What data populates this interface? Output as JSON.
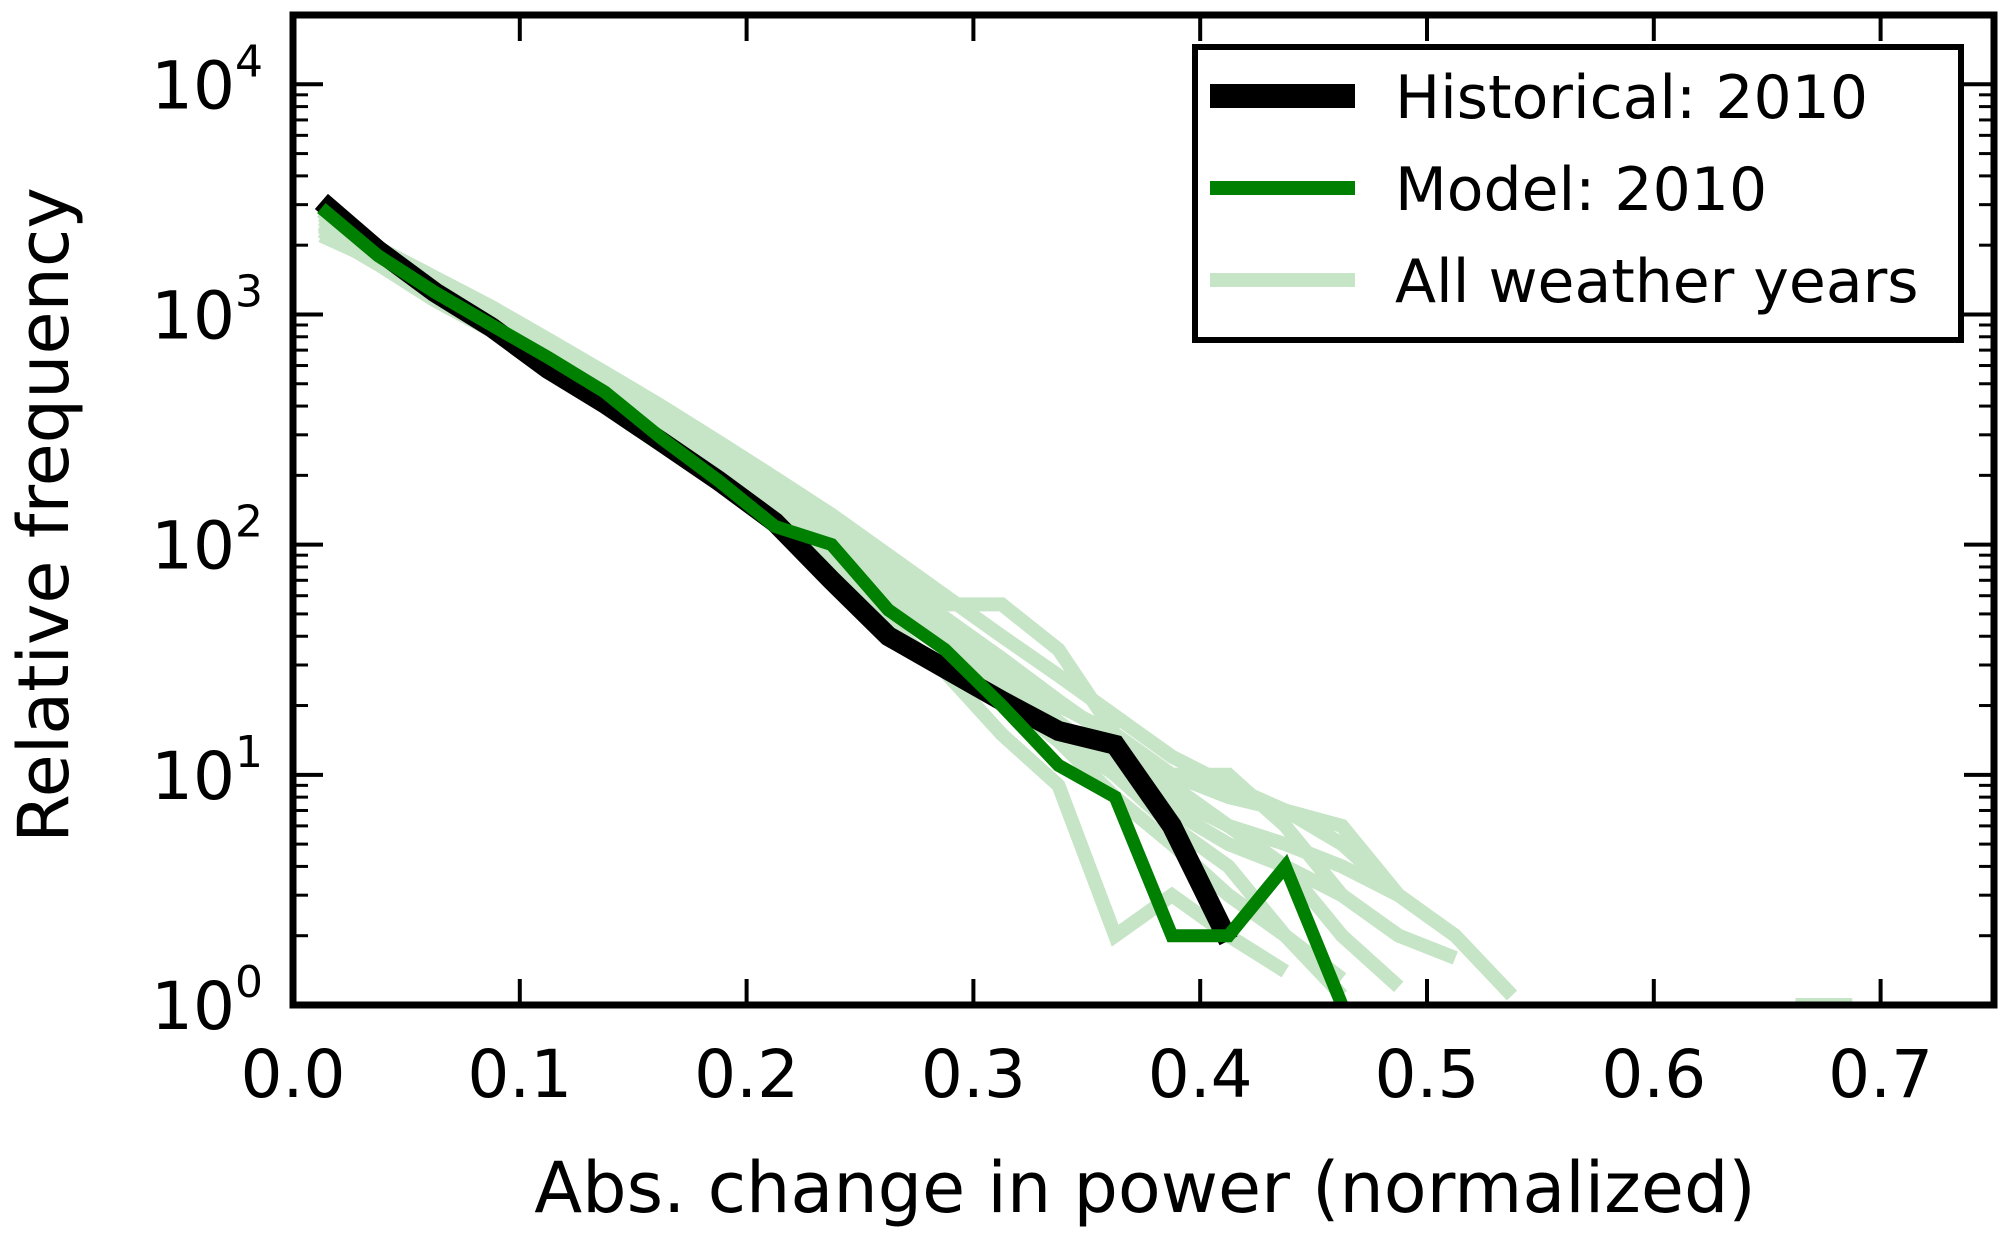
{
  "chart_data": {
    "type": "line",
    "title": "",
    "xlabel": "Abs. change in power (normalized)",
    "ylabel": "Relative frequency",
    "xlim": [
      0.0,
      0.75
    ],
    "ylim": [
      1,
      20000
    ],
    "yscale": "log",
    "grid": false,
    "legend_position": "top-right",
    "x_ticks": [
      0.0,
      0.1,
      0.2,
      0.3,
      0.4,
      0.5,
      0.6,
      0.7
    ],
    "x_tick_labels": [
      "0.0",
      "0.1",
      "0.2",
      "0.3",
      "0.4",
      "0.5",
      "0.6",
      "0.7"
    ],
    "y_ticks": [
      1,
      10,
      100,
      1000,
      10000
    ],
    "y_tick_labels": [
      {
        "base": "10",
        "exp": "0"
      },
      {
        "base": "10",
        "exp": "1"
      },
      {
        "base": "10",
        "exp": "2"
      },
      {
        "base": "10",
        "exp": "3"
      },
      {
        "base": "10",
        "exp": "4"
      }
    ],
    "legend": [
      {
        "key": "historical",
        "label": "Historical: 2010",
        "color": "#000000"
      },
      {
        "key": "model",
        "label": "Model: 2010",
        "color": "#008000"
      },
      {
        "key": "weather",
        "label": "All weather years",
        "color": "#c6e4c6"
      }
    ],
    "weather_series": [
      {
        "name": "weather-1",
        "x": [
          0.0125,
          0.0375,
          0.0625,
          0.0875,
          0.1125,
          0.1375,
          0.1625,
          0.1875,
          0.2125,
          0.2375,
          0.2625,
          0.2875,
          0.3125,
          0.3375,
          0.3625,
          0.3875,
          0.4125,
          0.4375,
          0.4625,
          0.4875,
          0.5125
        ],
        "y": [
          2200,
          1700,
          1200,
          900,
          650,
          450,
          320,
          220,
          150,
          95,
          60,
          38,
          24,
          15,
          10,
          7,
          5,
          4,
          3,
          2,
          1.6
        ]
      },
      {
        "name": "weather-2",
        "x": [
          0.0125,
          0.0375,
          0.0625,
          0.0875,
          0.1125,
          0.1375,
          0.1625,
          0.1875,
          0.2125,
          0.2375,
          0.2625,
          0.2875,
          0.3125,
          0.3375,
          0.3625,
          0.3875,
          0.4125,
          0.4375,
          0.4625,
          0.4875
        ],
        "y": [
          2500,
          1850,
          1350,
          1000,
          720,
          500,
          360,
          260,
          180,
          120,
          80,
          55,
          55,
          35,
          15,
          10,
          10,
          6,
          3,
          2
        ]
      },
      {
        "name": "weather-3",
        "x": [
          0.0125,
          0.0375,
          0.0625,
          0.0875,
          0.1125,
          0.1375,
          0.1625,
          0.1875,
          0.2125,
          0.2375,
          0.2625,
          0.2875,
          0.3125,
          0.3375,
          0.3625,
          0.3875,
          0.4125,
          0.4375
        ],
        "y": [
          2800,
          1800,
          1250,
          920,
          620,
          420,
          290,
          190,
          120,
          80,
          45,
          28,
          15,
          9,
          2,
          3,
          2,
          1.4
        ]
      },
      {
        "name": "weather-4",
        "x": [
          0.0125,
          0.0375,
          0.0625,
          0.0875,
          0.1125,
          0.1375,
          0.1625,
          0.1875,
          0.2125,
          0.2375,
          0.2625,
          0.2875,
          0.3125,
          0.3375,
          0.3625,
          0.3875,
          0.4125,
          0.4375,
          0.4625,
          0.4875,
          0.5125,
          0.5375
        ],
        "y": [
          2400,
          1750,
          1300,
          950,
          700,
          480,
          340,
          240,
          160,
          110,
          70,
          45,
          30,
          20,
          15,
          10,
          8,
          7,
          6,
          3,
          2,
          1.1
        ]
      },
      {
        "name": "weather-5",
        "x": [
          0.0125,
          0.0375,
          0.0625,
          0.0875,
          0.1125,
          0.1375,
          0.1625,
          0.1875,
          0.2125,
          0.2375,
          0.2625,
          0.2875,
          0.3125,
          0.3375,
          0.3625,
          0.3875,
          0.4125,
          0.4375,
          0.4625,
          0.4875
        ],
        "y": [
          2600,
          1900,
          1400,
          1050,
          750,
          530,
          370,
          250,
          170,
          115,
          72,
          48,
          32,
          21,
          14,
          9,
          6,
          4,
          2,
          1.2
        ]
      },
      {
        "name": "weather-6",
        "x": [
          0.0125,
          0.0375,
          0.0625,
          0.0875,
          0.1125,
          0.1375,
          0.1625,
          0.1875,
          0.2125,
          0.2375,
          0.2625,
          0.2875,
          0.3125,
          0.3375,
          0.3625,
          0.3875,
          0.4125,
          0.4375,
          0.4625
        ],
        "y": [
          2300,
          1650,
          1150,
          850,
          600,
          400,
          280,
          190,
          130,
          90,
          55,
          36,
          22,
          14,
          8,
          5,
          3,
          2,
          1.1
        ]
      },
      {
        "name": "weather-7",
        "x": [
          0.0125,
          0.0375,
          0.0625,
          0.0875,
          0.1125,
          0.1375,
          0.1625,
          0.1875,
          0.2125,
          0.2375,
          0.2625,
          0.2875,
          0.3125,
          0.3375,
          0.3625,
          0.3875,
          0.4125,
          0.4375,
          0.4625,
          0.4875,
          0.5125
        ],
        "y": [
          2700,
          1950,
          1450,
          1080,
          780,
          560,
          400,
          280,
          195,
          135,
          90,
          60,
          40,
          27,
          18,
          12,
          9,
          7,
          5,
          3,
          2
        ]
      },
      {
        "name": "weather-8",
        "x": [
          0.0125,
          0.0375,
          0.0625,
          0.0875,
          0.1125,
          0.1375,
          0.1625,
          0.1875,
          0.2125,
          0.2375,
          0.2625,
          0.2875,
          0.3125,
          0.3375,
          0.3625,
          0.3875,
          0.4125,
          0.4375,
          0.4625
        ],
        "y": [
          2900,
          1800,
          1280,
          940,
          640,
          430,
          300,
          205,
          140,
          96,
          62,
          40,
          26,
          16,
          10,
          6,
          4,
          2,
          1.3
        ]
      },
      {
        "name": "weather-9",
        "x": [
          0.0125,
          0.0375,
          0.0625,
          0.0875,
          0.1125,
          0.1375,
          0.1625,
          0.1875,
          0.2125,
          0.2375,
          0.2625,
          0.2875,
          0.3125,
          0.3375,
          0.3625,
          0.3875,
          0.4125,
          0.4375,
          0.4625,
          0.4875
        ],
        "y": [
          2450,
          1720,
          1230,
          900,
          660,
          460,
          330,
          230,
          160,
          105,
          66,
          42,
          27,
          17,
          11,
          8,
          6,
          5,
          4,
          3
        ]
      },
      {
        "name": "weather-10",
        "x": [
          0.6625,
          0.6875
        ],
        "y": [
          1.0,
          1.0
        ]
      }
    ],
    "series": [
      {
        "name": "Historical: 2010",
        "color": "#000000",
        "x": [
          0.0125,
          0.0375,
          0.0625,
          0.0875,
          0.1125,
          0.1375,
          0.1625,
          0.1875,
          0.2125,
          0.2375,
          0.2625,
          0.2875,
          0.3125,
          0.3375,
          0.3625,
          0.3875,
          0.4125
        ],
        "y": [
          3100,
          1900,
          1250,
          880,
          580,
          410,
          280,
          190,
          125,
          70,
          40,
          29,
          21,
          15.5,
          13.5,
          6,
          1.9
        ]
      },
      {
        "name": "Model: 2010",
        "color": "#008000",
        "x": [
          0.0125,
          0.0375,
          0.0625,
          0.0875,
          0.1125,
          0.1375,
          0.1625,
          0.1875,
          0.2125,
          0.2375,
          0.2625,
          0.2875,
          0.3125,
          0.3375,
          0.3625,
          0.3875,
          0.4125,
          0.4375,
          0.4625
        ],
        "y": [
          2900,
          1800,
          1250,
          900,
          650,
          460,
          290,
          190,
          120,
          100,
          52,
          35,
          20,
          11,
          8,
          2,
          2,
          4,
          1
        ]
      }
    ]
  }
}
